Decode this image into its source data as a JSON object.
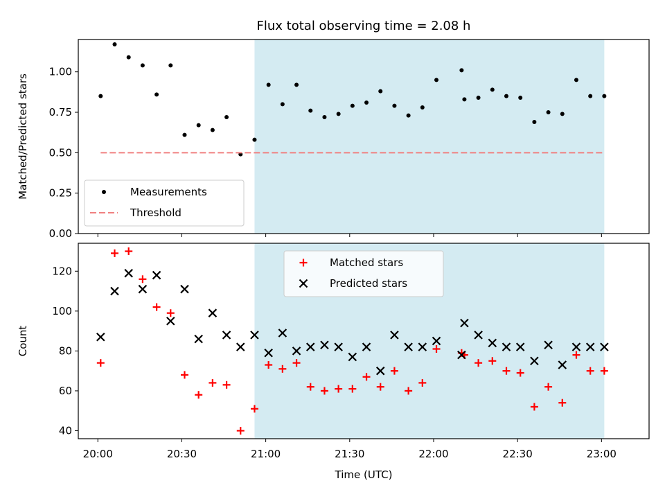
{
  "chart_data": [
    {
      "type": "scatter",
      "title": "Flux total observing time = 2.08 h",
      "xlabel": "",
      "ylabel": "Matched/Predicted stars",
      "xlim": [
        "19:53",
        "23:17"
      ],
      "ylim": [
        0,
        1.2
      ],
      "yticks": [
        "0.00",
        "0.25",
        "0.50",
        "0.75",
        "1.00"
      ],
      "grid": false,
      "legend_position": "lower-left",
      "highlight_span": {
        "start": "20:56",
        "end": "23:01",
        "color": "#d4ebf2"
      },
      "series": [
        {
          "name": "Measurements",
          "marker": "dot",
          "color": "#000000",
          "x": [
            "20:01",
            "20:06",
            "20:11",
            "20:16",
            "20:21",
            "20:26",
            "20:31",
            "20:36",
            "20:41",
            "20:46",
            "20:51",
            "20:56",
            "21:01",
            "21:06",
            "21:11",
            "21:16",
            "21:21",
            "21:26",
            "21:31",
            "21:36",
            "21:41",
            "21:46",
            "21:51",
            "21:56",
            "22:01",
            "22:10",
            "22:11",
            "22:16",
            "22:21",
            "22:26",
            "22:31",
            "22:36",
            "22:41",
            "22:46",
            "22:51",
            "22:56",
            "23:01"
          ],
          "y": [
            0.85,
            1.17,
            1.09,
            1.04,
            0.86,
            1.04,
            0.61,
            0.67,
            0.64,
            0.72,
            0.49,
            0.58,
            0.92,
            0.8,
            0.92,
            0.76,
            0.72,
            0.74,
            0.79,
            0.81,
            0.88,
            0.79,
            0.73,
            0.78,
            0.95,
            1.01,
            0.83,
            0.84,
            0.89,
            0.85,
            0.84,
            0.69,
            0.75,
            0.74,
            0.95,
            0.85,
            0.85
          ]
        },
        {
          "name": "Threshold",
          "type": "line",
          "style": "dashed",
          "color": "#f08080",
          "x": [
            "20:01",
            "23:01"
          ],
          "y": [
            0.5,
            0.5
          ]
        }
      ]
    },
    {
      "type": "scatter",
      "title": "",
      "xlabel": "Time (UTC)",
      "ylabel": "Count",
      "xlim": [
        "19:53",
        "23:17"
      ],
      "ylim": [
        36,
        134
      ],
      "xticks": [
        "20:00",
        "20:30",
        "21:00",
        "21:30",
        "22:00",
        "22:30",
        "23:00"
      ],
      "yticks": [
        "40",
        "60",
        "80",
        "100",
        "120"
      ],
      "grid": false,
      "legend_position": "top-center",
      "highlight_span": {
        "start": "20:56",
        "end": "23:01",
        "color": "#d4ebf2"
      },
      "series": [
        {
          "name": "Matched stars",
          "marker": "plus",
          "color": "#ff0000",
          "x": [
            "20:01",
            "20:06",
            "20:11",
            "20:16",
            "20:21",
            "20:26",
            "20:31",
            "20:36",
            "20:41",
            "20:46",
            "20:51",
            "20:56",
            "21:01",
            "21:06",
            "21:11",
            "21:16",
            "21:21",
            "21:26",
            "21:31",
            "21:36",
            "21:41",
            "21:46",
            "21:51",
            "21:56",
            "22:01",
            "22:10",
            "22:11",
            "22:16",
            "22:21",
            "22:26",
            "22:31",
            "22:36",
            "22:41",
            "22:46",
            "22:51",
            "22:56",
            "23:01"
          ],
          "y": [
            74,
            129,
            130,
            116,
            102,
            99,
            68,
            58,
            64,
            63,
            40,
            51,
            73,
            71,
            74,
            62,
            60,
            61,
            61,
            67,
            62,
            70,
            60,
            64,
            81,
            79,
            78,
            74,
            75,
            70,
            69,
            52,
            62,
            54,
            78,
            70,
            70
          ]
        },
        {
          "name": "Predicted stars",
          "marker": "cross",
          "color": "#000000",
          "x": [
            "20:01",
            "20:06",
            "20:11",
            "20:16",
            "20:21",
            "20:26",
            "20:31",
            "20:36",
            "20:41",
            "20:46",
            "20:51",
            "20:56",
            "21:01",
            "21:06",
            "21:11",
            "21:16",
            "21:21",
            "21:26",
            "21:31",
            "21:36",
            "21:41",
            "21:46",
            "21:51",
            "21:56",
            "22:01",
            "22:10",
            "22:11",
            "22:16",
            "22:21",
            "22:26",
            "22:31",
            "22:36",
            "22:41",
            "22:46",
            "22:51",
            "22:56",
            "23:01"
          ],
          "y": [
            87,
            110,
            119,
            111,
            118,
            95,
            111,
            86,
            99,
            88,
            82,
            88,
            79,
            89,
            80,
            82,
            83,
            82,
            77,
            82,
            70,
            88,
            82,
            82,
            85,
            78,
            94,
            88,
            84,
            82,
            82,
            75,
            83,
            73,
            82,
            82,
            82
          ]
        }
      ]
    }
  ]
}
